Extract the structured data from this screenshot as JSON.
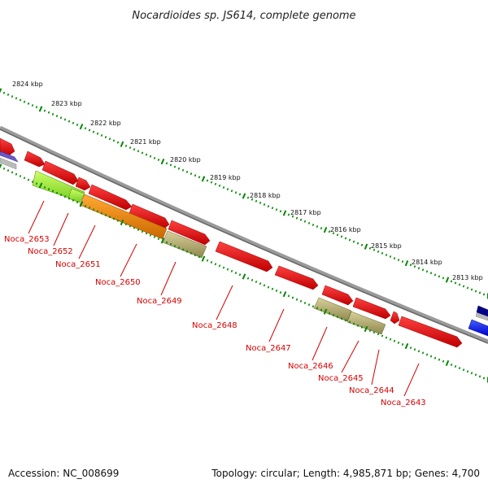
{
  "title": "Nocardioides sp. JS614, complete genome",
  "accession": "Accession: NC_008699",
  "summary": "Topology: circular; Length: 4,985,871 bp; Genes: 4,700",
  "kbp_labels": [
    "2824 kbp",
    "2823 kbp",
    "2822 kbp",
    "2821 kbp",
    "2820 kbp",
    "2819 kbp",
    "2818 kbp",
    "2817 kbp",
    "2816 kbp",
    "2815 kbp",
    "2814 kbp",
    "2813 kbp"
  ],
  "gene_labels": [
    "Noca_2653",
    "Noca_2652",
    "Noca_2651",
    "Noca_2650",
    "Noca_2649",
    "Noca_2648",
    "Noca_2647",
    "Noca_2646",
    "Noca_2645",
    "Noca_2644",
    "Noca_2643"
  ],
  "colors": {
    "backbone": "#8a8a8a",
    "forward_cds": "#ff0000",
    "lime_cds": "#99ff33",
    "orange_cds": "#ff8800",
    "khaki_cds": "#b8b070",
    "blue_cds": "#0000ff",
    "navy_cds": "#000088",
    "purple_cds": "#6a5acd",
    "tick_green": "#008800",
    "label_red": "#d40000"
  }
}
